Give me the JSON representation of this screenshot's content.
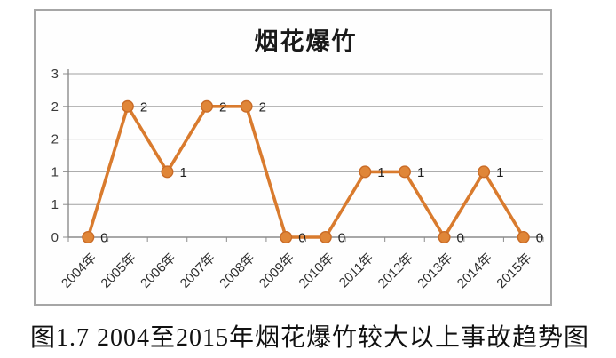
{
  "figure": {
    "caption": "图1.7 2004至2015年烟花爆竹较大以上事故趋势图"
  },
  "chart_data": {
    "type": "line",
    "title": "烟花爆竹",
    "categories": [
      "2004年",
      "2005年",
      "2006年",
      "2007年",
      "2008年",
      "2009年",
      "2010年",
      "2011年",
      "2012年",
      "2013年",
      "2014年",
      "2015年"
    ],
    "values": [
      0,
      2,
      1,
      2,
      2,
      0,
      0,
      1,
      1,
      0,
      1,
      0
    ],
    "data_labels_shown": true,
    "xlabel": "",
    "ylabel": "",
    "ylim": [
      0,
      2.5
    ],
    "ytick_labels_bottom_to_top": [
      "0",
      "1",
      "1",
      "2",
      "2",
      "3"
    ],
    "grid": true,
    "legend": "none",
    "marker": "circle",
    "colors": {
      "line": "#D97B2E",
      "marker_fill": "#E08638",
      "marker_stroke": "#C96B26",
      "grid": "#A0A0A0",
      "axis": "#8C8C8C",
      "frame_border": "#A6A6A6",
      "title_text": "#1A1A1A",
      "label_text": "#2E2E2E"
    }
  }
}
